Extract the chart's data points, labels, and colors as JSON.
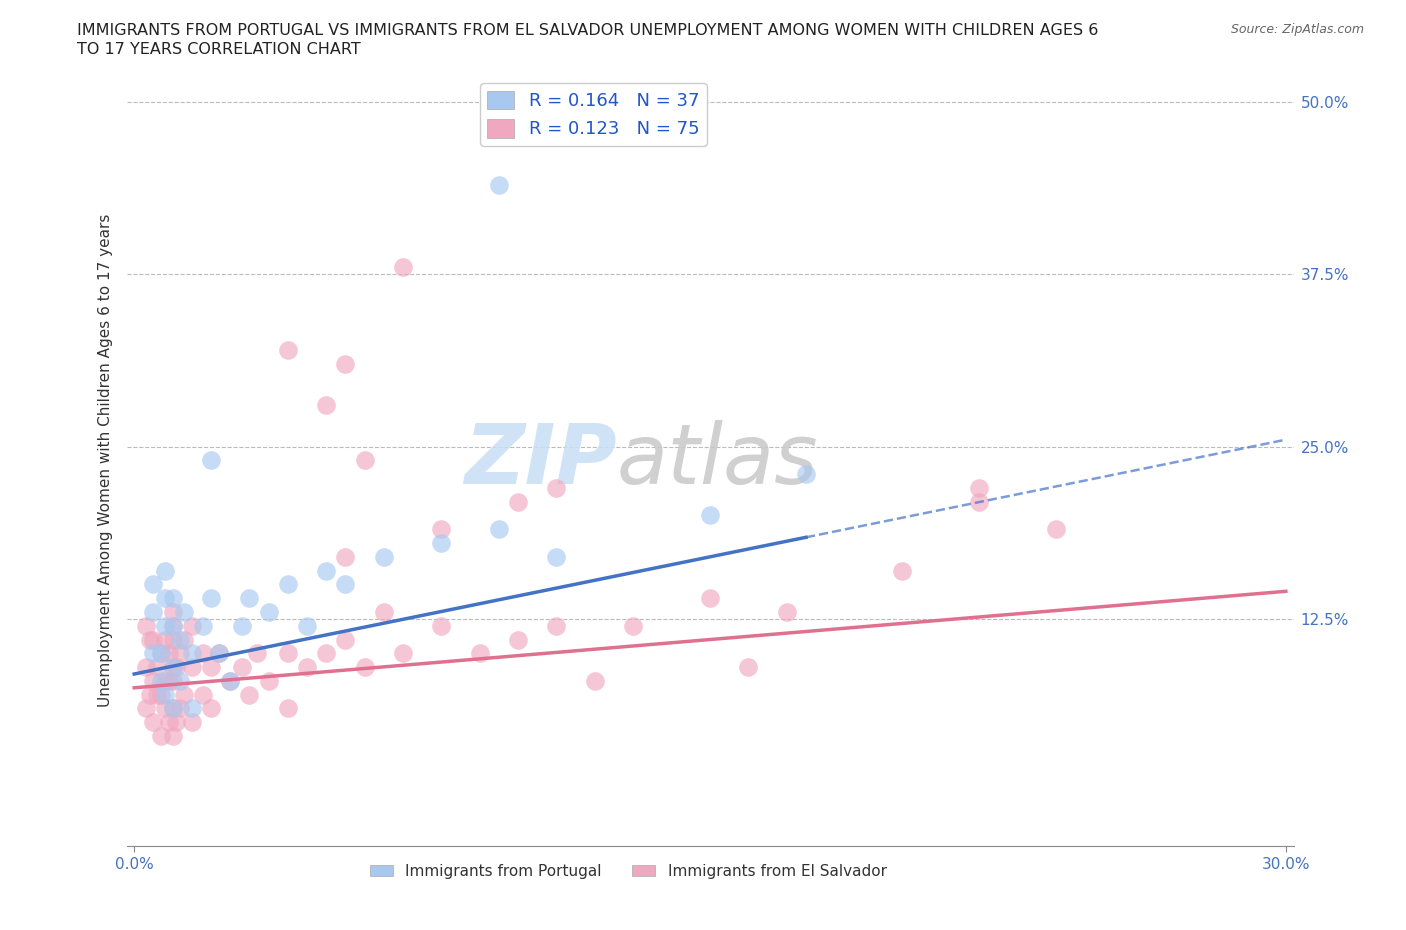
{
  "title_line1": "IMMIGRANTS FROM PORTUGAL VS IMMIGRANTS FROM EL SALVADOR UNEMPLOYMENT AMONG WOMEN WITH CHILDREN AGES 6",
  "title_line2": "TO 17 YEARS CORRELATION CHART",
  "source": "Source: ZipAtlas.com",
  "ylabel": "Unemployment Among Women with Children Ages 6 to 17 years",
  "xlim": [
    -0.002,
    0.302
  ],
  "ylim": [
    -0.04,
    0.52
  ],
  "ytick_positions": [
    0.125,
    0.25,
    0.375,
    0.5
  ],
  "ytick_labels": [
    "12.5%",
    "25.0%",
    "37.5%",
    "50.0%"
  ],
  "xtick_positions": [
    0.0,
    0.3
  ],
  "xtick_labels": [
    "0.0%",
    "30.0%"
  ],
  "R_portugal": 0.164,
  "N_portugal": 37,
  "R_salvador": 0.123,
  "N_salvador": 75,
  "color_portugal": "#a8c8f0",
  "color_salvador": "#f0a8c0",
  "line_color_portugal": "#4472c4",
  "line_color_salvador": "#e07090",
  "legend_label_portugal": "Immigrants from Portugal",
  "legend_label_salvador": "Immigrants from El Salvador",
  "watermark_zip": "ZIP",
  "watermark_atlas": "atlas",
  "portugal_x": [
    0.005,
    0.005,
    0.005,
    0.007,
    0.007,
    0.008,
    0.008,
    0.008,
    0.008,
    0.01,
    0.01,
    0.01,
    0.01,
    0.012,
    0.012,
    0.013,
    0.015,
    0.015,
    0.018,
    0.02,
    0.022,
    0.025,
    0.028,
    0.03,
    0.035,
    0.04,
    0.045,
    0.05,
    0.055,
    0.065,
    0.08,
    0.095,
    0.11,
    0.15,
    0.175,
    0.02,
    0.095
  ],
  "portugal_y": [
    0.1,
    0.13,
    0.15,
    0.08,
    0.1,
    0.07,
    0.12,
    0.14,
    0.16,
    0.06,
    0.09,
    0.12,
    0.14,
    0.08,
    0.11,
    0.13,
    0.06,
    0.1,
    0.12,
    0.14,
    0.1,
    0.08,
    0.12,
    0.14,
    0.13,
    0.15,
    0.12,
    0.16,
    0.15,
    0.17,
    0.18,
    0.19,
    0.17,
    0.2,
    0.23,
    0.24,
    0.44
  ],
  "salvador_x": [
    0.003,
    0.003,
    0.003,
    0.004,
    0.004,
    0.005,
    0.005,
    0.005,
    0.006,
    0.006,
    0.007,
    0.007,
    0.007,
    0.008,
    0.008,
    0.008,
    0.009,
    0.009,
    0.009,
    0.01,
    0.01,
    0.01,
    0.01,
    0.01,
    0.01,
    0.01,
    0.011,
    0.011,
    0.012,
    0.012,
    0.013,
    0.013,
    0.015,
    0.015,
    0.015,
    0.018,
    0.018,
    0.02,
    0.02,
    0.022,
    0.025,
    0.028,
    0.03,
    0.032,
    0.035,
    0.04,
    0.04,
    0.045,
    0.05,
    0.055,
    0.06,
    0.065,
    0.07,
    0.08,
    0.09,
    0.1,
    0.11,
    0.13,
    0.15,
    0.17,
    0.2,
    0.22,
    0.24,
    0.12,
    0.16,
    0.07,
    0.04,
    0.05,
    0.055,
    0.1,
    0.08,
    0.055,
    0.11,
    0.06,
    0.22
  ],
  "salvador_y": [
    0.06,
    0.09,
    0.12,
    0.07,
    0.11,
    0.05,
    0.08,
    0.11,
    0.07,
    0.09,
    0.04,
    0.07,
    0.1,
    0.06,
    0.08,
    0.11,
    0.05,
    0.08,
    0.1,
    0.04,
    0.06,
    0.08,
    0.09,
    0.11,
    0.12,
    0.13,
    0.05,
    0.09,
    0.06,
    0.1,
    0.07,
    0.11,
    0.05,
    0.09,
    0.12,
    0.07,
    0.1,
    0.06,
    0.09,
    0.1,
    0.08,
    0.09,
    0.07,
    0.1,
    0.08,
    0.06,
    0.1,
    0.09,
    0.1,
    0.11,
    0.09,
    0.13,
    0.1,
    0.12,
    0.1,
    0.11,
    0.12,
    0.12,
    0.14,
    0.13,
    0.16,
    0.22,
    0.19,
    0.08,
    0.09,
    0.38,
    0.32,
    0.28,
    0.31,
    0.21,
    0.19,
    0.17,
    0.22,
    0.24,
    0.21
  ],
  "line_portugal_x0": 0.0,
  "line_portugal_y0": 0.085,
  "line_portugal_x1": 0.3,
  "line_portugal_y1": 0.255,
  "line_salvador_x0": 0.0,
  "line_salvador_y0": 0.075,
  "line_salvador_x1": 0.3,
  "line_salvador_y1": 0.145
}
